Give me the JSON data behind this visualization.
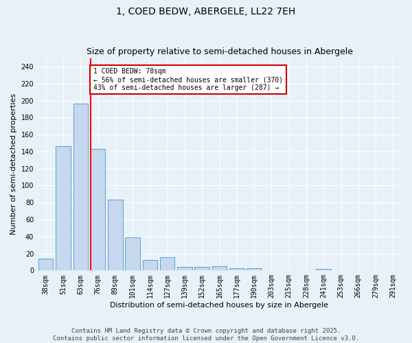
{
  "title": "1, COED BEDW, ABERGELE, LL22 7EH",
  "subtitle": "Size of property relative to semi-detached houses in Abergele",
  "xlabel": "Distribution of semi-detached houses by size in Abergele",
  "ylabel": "Number of semi-detached properties",
  "categories": [
    "38sqm",
    "51sqm",
    "63sqm",
    "76sqm",
    "89sqm",
    "101sqm",
    "114sqm",
    "127sqm",
    "139sqm",
    "152sqm",
    "165sqm",
    "177sqm",
    "190sqm",
    "203sqm",
    "215sqm",
    "228sqm",
    "241sqm",
    "253sqm",
    "266sqm",
    "279sqm",
    "291sqm"
  ],
  "values": [
    14,
    146,
    196,
    143,
    83,
    39,
    12,
    16,
    4,
    4,
    5,
    3,
    3,
    0,
    0,
    0,
    2,
    0,
    0,
    0,
    0
  ],
  "bar_color": "#c5d8ed",
  "bar_edge_color": "#5a9fd4",
  "red_line_index": 3,
  "annotation_text": "1 COED BEDW: 78sqm\n← 56% of semi-detached houses are smaller (370)\n43% of semi-detached houses are larger (287) →",
  "annotation_box_color": "#ffffff",
  "annotation_box_edge": "#cc0000",
  "ylim": [
    0,
    250
  ],
  "yticks": [
    0,
    20,
    40,
    60,
    80,
    100,
    120,
    140,
    160,
    180,
    200,
    220,
    240
  ],
  "footer_text": "Contains HM Land Registry data © Crown copyright and database right 2025.\nContains public sector information licensed under the Open Government Licence v3.0.",
  "bg_color": "#e8f0f8",
  "plot_bg_color": "#e8f0f8",
  "grid_color": "#ffffff",
  "title_fontsize": 10,
  "subtitle_fontsize": 9,
  "axis_label_fontsize": 8,
  "tick_fontsize": 7,
  "footer_fontsize": 6.5
}
